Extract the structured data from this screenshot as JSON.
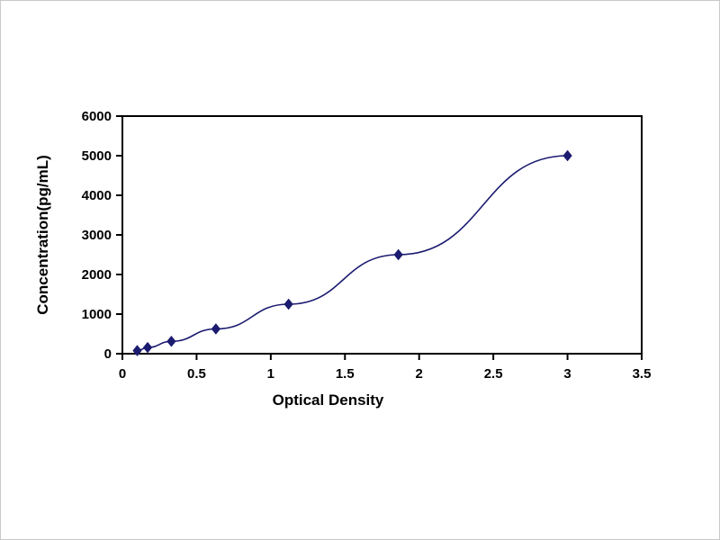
{
  "figure": {
    "background_color": "#ffffff",
    "border_color": "#c8c8c8"
  },
  "chart_data": {
    "type": "line",
    "title": "",
    "xlabel": "Optical Density",
    "ylabel": "Concentration(pg/mL)",
    "xlim": [
      0,
      3.5
    ],
    "ylim": [
      0,
      6000
    ],
    "x_ticks": [
      0,
      0.5,
      1,
      1.5,
      2,
      2.5,
      3,
      3.5
    ],
    "y_ticks": [
      0,
      1000,
      2000,
      3000,
      4000,
      5000,
      6000
    ],
    "grid": false,
    "legend_position": "none",
    "axis_color": "#000000",
    "series": [
      {
        "name": "standard-curve",
        "color": "#1b1b70",
        "marker": "diamond",
        "marker_color": "#1b1b70",
        "points": [
          {
            "x": 0.1,
            "y": 78
          },
          {
            "x": 0.17,
            "y": 156
          },
          {
            "x": 0.33,
            "y": 312
          },
          {
            "x": 0.63,
            "y": 625
          },
          {
            "x": 1.12,
            "y": 1250
          },
          {
            "x": 1.86,
            "y": 2500
          },
          {
            "x": 3.0,
            "y": 5000
          }
        ]
      }
    ]
  }
}
